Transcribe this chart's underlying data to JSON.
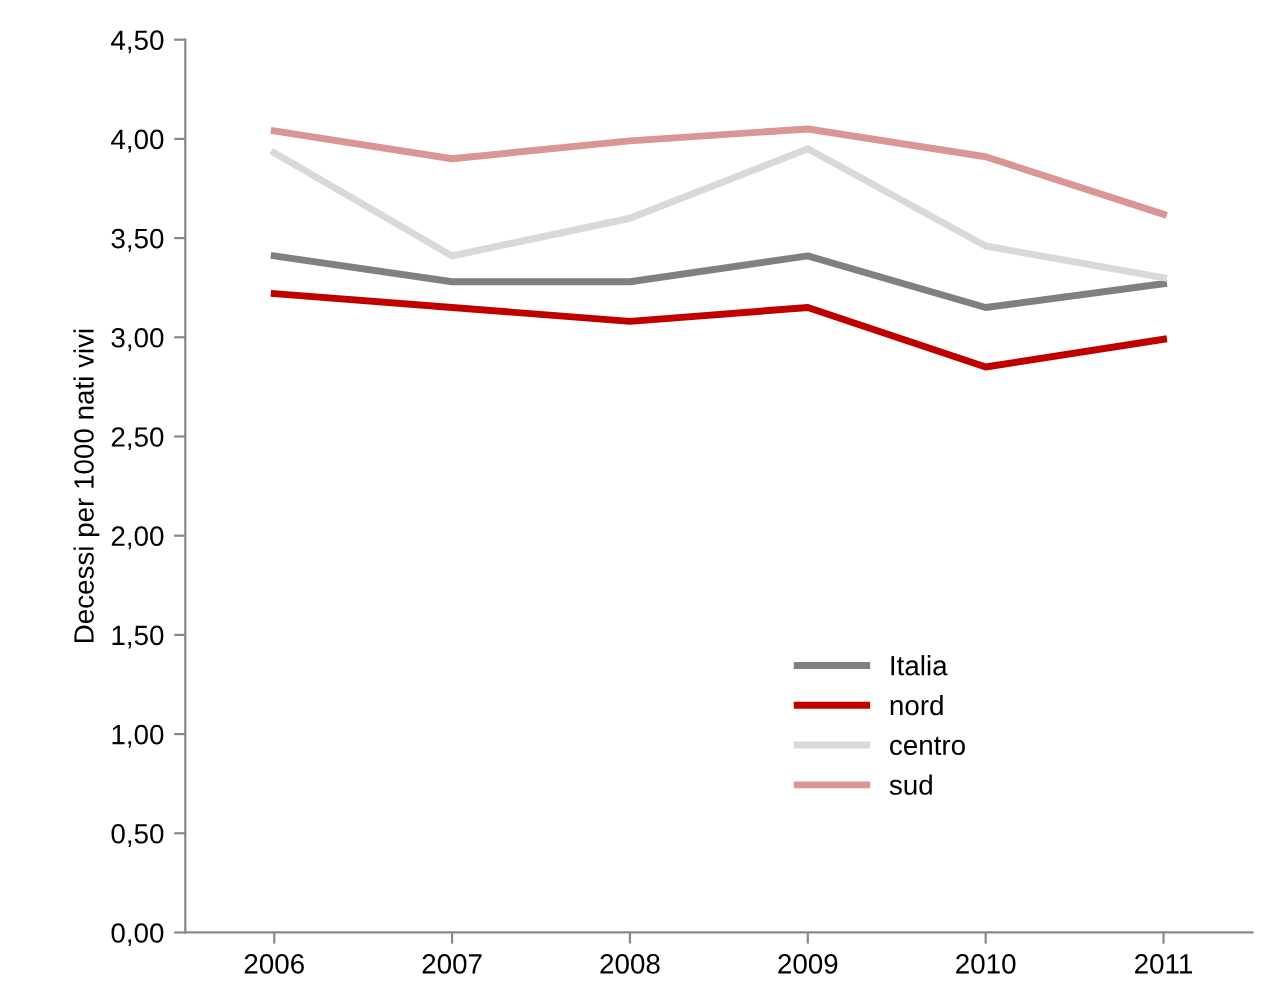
{
  "chart_data": {
    "type": "line",
    "ylabel": "Decessi per 1000 nati vivi",
    "categories": [
      "2006",
      "2007",
      "2008",
      "2009",
      "2010",
      "2011"
    ],
    "series": [
      {
        "name": "Italia",
        "color": "#808080",
        "values": [
          3.41,
          3.28,
          3.28,
          3.41,
          3.15,
          3.27
        ]
      },
      {
        "name": "nord",
        "color": "#c00000",
        "values": [
          3.22,
          3.15,
          3.08,
          3.15,
          2.85,
          2.99
        ]
      },
      {
        "name": "centro",
        "color": "#d9d9d9",
        "values": [
          3.93,
          3.41,
          3.6,
          3.95,
          3.46,
          3.3
        ]
      },
      {
        "name": "sud",
        "color": "#d99694",
        "values": [
          4.04,
          3.9,
          3.99,
          4.05,
          3.91,
          3.62
        ]
      }
    ],
    "ylim": [
      0,
      4.5
    ],
    "yticks": [
      {
        "value": 0,
        "label": "0,00"
      },
      {
        "value": 0.5,
        "label": "0,50"
      },
      {
        "value": 1,
        "label": "1,00"
      },
      {
        "value": 1.5,
        "label": "1,50"
      },
      {
        "value": 2,
        "label": "2,00"
      },
      {
        "value": 2.5,
        "label": "2,50"
      },
      {
        "value": 3,
        "label": "3,00"
      },
      {
        "value": 3.5,
        "label": "3,50"
      },
      {
        "value": 4,
        "label": "4,00"
      },
      {
        "value": 4.5,
        "label": "4,50"
      }
    ],
    "grid": false,
    "legend": "bottom",
    "marker": "none",
    "line_style": "solid"
  }
}
